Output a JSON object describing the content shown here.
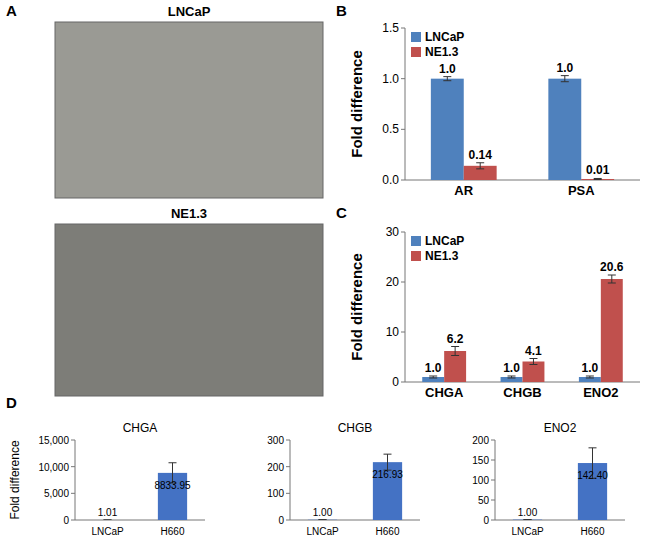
{
  "panel_labels": [
    "A",
    "B",
    "C",
    "D"
  ],
  "images": [
    {
      "label": "LNCaP"
    },
    {
      "label": "NE1.3"
    }
  ],
  "chart_data": [
    {
      "type": "bar",
      "y_label": "Fold difference",
      "categories": [
        "AR",
        "PSA"
      ],
      "series": [
        {
          "name": "LNCaP",
          "color": "#4f81bd",
          "values": [
            1.0,
            1.0
          ],
          "value_labels": [
            "1.0",
            "1.0"
          ],
          "errors": [
            0.02,
            0.03
          ]
        },
        {
          "name": "NE1.3",
          "color": "#c0504d",
          "values": [
            0.14,
            0.01
          ],
          "value_labels": [
            "0.14",
            "0.01"
          ],
          "errors": [
            0.03,
            0.005
          ]
        }
      ],
      "ylim": [
        0,
        1.5
      ],
      "yticks": [
        {
          "value": 0,
          "label": "0.0"
        },
        {
          "value": 0.5,
          "label": "0.5"
        },
        {
          "value": 1,
          "label": "1.0"
        },
        {
          "value": 1.5,
          "label": "1.5"
        }
      ],
      "legend": "top-left",
      "data_labels": true
    },
    {
      "type": "bar",
      "y_label": "Fold difference",
      "categories": [
        "CHGA",
        "CHGB",
        "ENO2"
      ],
      "series": [
        {
          "name": "LNCaP",
          "color": "#4f81bd",
          "values": [
            1.0,
            1.0,
            1.0
          ],
          "value_labels": [
            "1.0",
            "1.0",
            "1.0"
          ],
          "errors": [
            0.2,
            0.2,
            0.2
          ]
        },
        {
          "name": "NE1.3",
          "color": "#c0504d",
          "values": [
            6.2,
            4.1,
            20.6
          ],
          "value_labels": [
            "6.2",
            "4.1",
            "20.6"
          ],
          "errors": [
            0.9,
            0.6,
            0.8
          ]
        }
      ],
      "ylim": [
        0,
        30
      ],
      "yticks": [
        0,
        10,
        20,
        30
      ],
      "legend": "top-left",
      "data_labels": true
    },
    {
      "type": "bar",
      "title": "CHGA",
      "y_label": "Fold difference",
      "categories": [
        "LNCaP",
        "H660"
      ],
      "values": [
        1.01,
        8833.95
      ],
      "value_labels": [
        "1.01",
        "8833.95"
      ],
      "errors": [
        0,
        1900
      ],
      "color": "#4472c4",
      "ylim": [
        0,
        15000
      ],
      "yticks": [
        0,
        {
          "value": 5000,
          "label": "5,000"
        },
        {
          "value": 10000,
          "label": "10,000"
        },
        {
          "value": 15000,
          "label": "15,000"
        }
      ],
      "data_labels": true
    },
    {
      "type": "bar",
      "title": "CHGB",
      "categories": [
        "LNCaP",
        "H660"
      ],
      "values": [
        1.0,
        216.93
      ],
      "value_labels": [
        "1.00",
        "216.93"
      ],
      "errors": [
        0,
        30
      ],
      "color": "#4472c4",
      "ylim": [
        0,
        300
      ],
      "yticks": [
        0,
        100,
        200,
        300
      ],
      "data_labels": true
    },
    {
      "type": "bar",
      "title": "ENO2",
      "categories": [
        "LNCaP",
        "H660"
      ],
      "values": [
        1.0,
        142.4
      ],
      "value_labels": [
        "1.00",
        "142.40"
      ],
      "errors": [
        0,
        38
      ],
      "color": "#4472c4",
      "ylim": [
        0,
        200
      ],
      "yticks": [
        0,
        50,
        100,
        150,
        200
      ],
      "data_labels": true
    }
  ]
}
